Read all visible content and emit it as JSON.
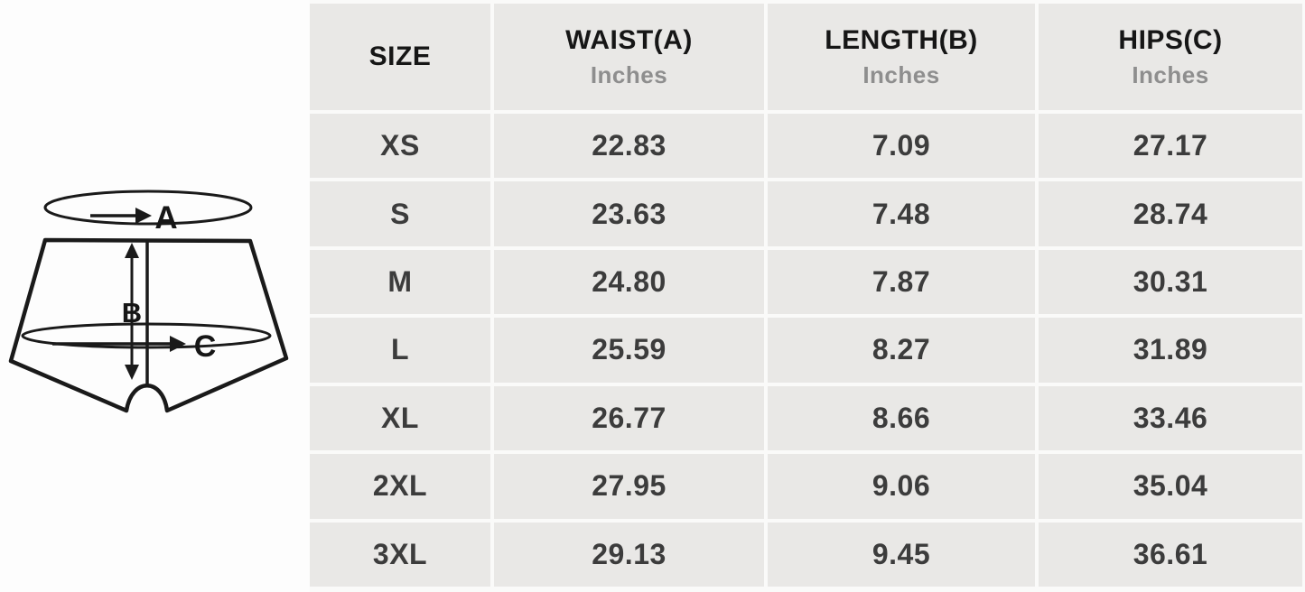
{
  "chart_data": {
    "type": "table",
    "columns": [
      {
        "id": "size",
        "label": "SIZE",
        "sublabel": ""
      },
      {
        "id": "waist",
        "label": "WAIST(A)",
        "sublabel": "Inches"
      },
      {
        "id": "length",
        "label": "LENGTH(B)",
        "sublabel": "Inches"
      },
      {
        "id": "hips",
        "label": "HIPS(C)",
        "sublabel": "Inches"
      }
    ],
    "rows": [
      {
        "size": "XS",
        "waist": "22.83",
        "length": "7.09",
        "hips": "27.17"
      },
      {
        "size": "S",
        "waist": "23.63",
        "length": "7.48",
        "hips": "28.74"
      },
      {
        "size": "M",
        "waist": "24.80",
        "length": "7.87",
        "hips": "30.31"
      },
      {
        "size": "L",
        "waist": "25.59",
        "length": "8.27",
        "hips": "31.89"
      },
      {
        "size": "XL",
        "waist": "26.77",
        "length": "8.66",
        "hips": "33.46"
      },
      {
        "size": "2XL",
        "waist": "27.95",
        "length": "9.06",
        "hips": "35.04"
      },
      {
        "size": "3XL",
        "waist": "29.13",
        "length": "9.45",
        "hips": "36.61"
      }
    ],
    "units": "Inches"
  },
  "diagram": {
    "labels": {
      "a": "A",
      "b": "B",
      "c": "C"
    }
  },
  "colors": {
    "page_bg": "#fdfdfd",
    "cell_bg": "#e9e8e6",
    "grid_line": "#fafaf9",
    "header_text": "#161616",
    "subheader_text": "#8e8e8e",
    "value_text": "#3c3c3c",
    "diagram_stroke": "#1a1a1a"
  }
}
